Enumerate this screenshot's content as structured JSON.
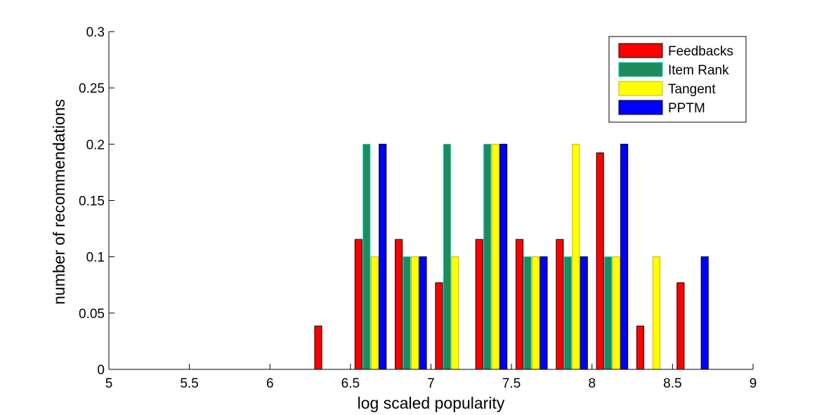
{
  "chart_data": {
    "type": "bar",
    "title": "",
    "xlabel": "log scaled popularity",
    "ylabel": "number of recommendations",
    "xlim": [
      5,
      9
    ],
    "ylim": [
      0,
      0.3
    ],
    "x_ticks": [
      "5",
      "5.5",
      "6",
      "6.5",
      "7",
      "7.5",
      "8",
      "8.5",
      "9"
    ],
    "y_ticks": [
      "0",
      "0.05",
      "0.1",
      "0.15",
      "0.2",
      "0.25",
      "0.3"
    ],
    "grid": false,
    "legend_position": "top-right",
    "x": [
      5.125,
      5.375,
      5.625,
      5.875,
      6.125,
      6.375,
      6.625,
      6.875,
      7.125,
      7.375,
      7.625,
      7.875,
      8.125,
      8.375,
      8.625,
      8.875
    ],
    "series": [
      {
        "name": "Feedbacks",
        "color": "#ff0000",
        "edge": "#000000",
        "values": [
          0,
          0,
          0,
          0,
          0,
          0.0385,
          0.1154,
          0.1154,
          0.0769,
          0.1154,
          0.1154,
          0.1154,
          0.1923,
          0.0385,
          0.0769,
          0
        ]
      },
      {
        "name": "Item Rank",
        "color": "#1f8a5b",
        "edge": "#00d0d0",
        "values": [
          0,
          0,
          0,
          0,
          0,
          0,
          0.2,
          0.1,
          0.2,
          0.2,
          0.1,
          0.1,
          0.1,
          0,
          0,
          0
        ]
      },
      {
        "name": "Tangent",
        "color": "#ffff00",
        "edge": "#c8b400",
        "values": [
          0,
          0,
          0,
          0,
          0,
          0,
          0.1,
          0.1,
          0.1,
          0.2,
          0.1,
          0.2,
          0.1,
          0.1,
          0,
          0
        ]
      },
      {
        "name": "PPTM",
        "color": "#0000ff",
        "edge": "#000000",
        "values": [
          0,
          0,
          0,
          0,
          0,
          0,
          0.2,
          0.1,
          0,
          0.2,
          0.1,
          0.1,
          0.2,
          0,
          0.1,
          0
        ]
      }
    ]
  }
}
